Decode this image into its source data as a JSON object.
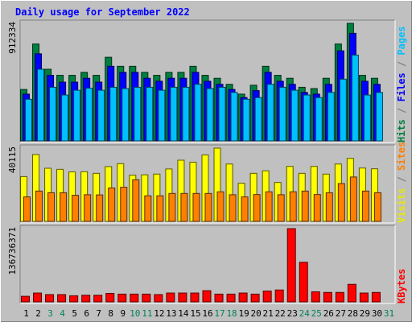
{
  "chart_data": {
    "type": "bar",
    "title": "Daily usage for September 2022",
    "categories": [
      "1",
      "2",
      "3",
      "4",
      "5",
      "6",
      "7",
      "8",
      "9",
      "10",
      "11",
      "12",
      "13",
      "14",
      "15",
      "16",
      "17",
      "18",
      "19",
      "20",
      "21",
      "22",
      "23",
      "24",
      "25",
      "26",
      "27",
      "28",
      "29",
      "30",
      "31"
    ],
    "weekend_days": [
      "3",
      "4",
      "10",
      "11",
      "17",
      "18",
      "24",
      "25",
      "31"
    ],
    "panels": [
      {
        "name": "hits-files-pages",
        "ymax_label": "912334",
        "ymax": 912334,
        "right_labels": [
          {
            "text": "Hits",
            "color": "#008040"
          },
          {
            "text": " / ",
            "color": "#808080"
          },
          {
            "text": "Files",
            "color": "#0000ff"
          },
          {
            "text": " / ",
            "color": "#808080"
          },
          {
            "text": "Pages",
            "color": "#00c0ff"
          }
        ],
        "series": [
          {
            "name": "Hits",
            "color": "#008040",
            "values": [
              399000,
              752000,
              556000,
              509000,
              509000,
              532000,
              509000,
              649000,
              579000,
              579000,
              532000,
              509000,
              532000,
              532000,
              579000,
              509000,
              486000,
              439000,
              363000,
              432000,
              579000,
              509000,
              486000,
              416000,
              406000,
              486000,
              752000,
              912334,
              509000,
              486000,
              0
            ]
          },
          {
            "name": "Files",
            "color": "#0000ff",
            "values": [
              363000,
              676000,
              509000,
              456000,
              456000,
              486000,
              456000,
              579000,
              532000,
              532000,
              486000,
              463000,
              486000,
              486000,
              532000,
              463000,
              439000,
              399000,
              336000,
              390000,
              532000,
              463000,
              439000,
              376000,
              363000,
              439000,
              699000,
              835000,
              463000,
              439000,
              0
            ]
          },
          {
            "name": "Pages",
            "color": "#00c0ff",
            "values": [
              323000,
              556000,
              416000,
              356000,
              393000,
              409000,
              393000,
              416000,
              406000,
              416000,
              416000,
              393000,
              416000,
              416000,
              439000,
              406000,
              416000,
              376000,
              323000,
              336000,
              439000,
              416000,
              393000,
              356000,
              336000,
              376000,
              479000,
              666000,
              356000,
              376000,
              0
            ]
          }
        ]
      },
      {
        "name": "visits-sites",
        "ymax_label": "40115",
        "ymax": 40115,
        "right_labels": [
          {
            "text": "Visits",
            "color": "#e8e800"
          },
          {
            "text": " / ",
            "color": "#808080"
          },
          {
            "text": "Sites",
            "color": "#ff8000"
          }
        ],
        "series": [
          {
            "name": "Visits",
            "color": "#ffff00",
            "values": [
              24500,
              36600,
              29100,
              28500,
              27100,
              27200,
              26300,
              30000,
              31600,
              25300,
              25500,
              25900,
              28700,
              33500,
              32400,
              36400,
              40115,
              31400,
              20900,
              26300,
              27700,
              21300,
              30100,
              26300,
              30100,
              25900,
              31400,
              34500,
              29200,
              28800,
              0
            ]
          },
          {
            "name": "Sites",
            "color": "#ff8000",
            "values": [
              13400,
              16600,
              15700,
              15700,
              14300,
              14600,
              14500,
              18300,
              18700,
              22800,
              14000,
              14000,
              15300,
              15300,
              15300,
              15300,
              16200,
              14600,
              13400,
              14700,
              16200,
              14600,
              16200,
              16600,
              14700,
              15700,
              20700,
              24300,
              16600,
              15700,
              0
            ]
          }
        ]
      },
      {
        "name": "kbytes",
        "ymax_label": "136736371",
        "ymax": 136736371,
        "right_labels": [
          {
            "text": "KBytes",
            "color": "#ff0000"
          }
        ],
        "series": [
          {
            "name": "KBytes",
            "color": "#ff0000",
            "values": [
              10400000,
              16500000,
              13600000,
              13600000,
              11400000,
              12400000,
              12400000,
              15800000,
              14500000,
              14500000,
              14500000,
              13600000,
              16500000,
              16500000,
              16500000,
              20900000,
              14500000,
              14500000,
              16500000,
              14500000,
              20200000,
              22200000,
              136736371,
              73900000,
              18800000,
              17600000,
              17600000,
              32700000,
              16500000,
              17600000,
              0
            ]
          }
        ]
      }
    ],
    "colors": {
      "background": "#c0c0c0",
      "plot_background": "#c0c0c0",
      "title": "#0000ff",
      "weekday_label": "#000000",
      "weekend_label": "#00805c"
    }
  }
}
